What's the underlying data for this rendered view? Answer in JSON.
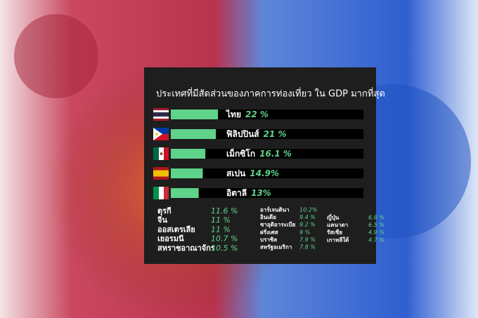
{
  "chart_data": {
    "type": "bar",
    "subtitle": "ประเทศที่มีสัดส่วนของภาคการท่องเที่ยว ใน GDP มากที่สุด",
    "categories": [
      "ไทย",
      "ฟิลิปปินส์",
      "เม็กซิโก",
      "สเปน",
      "อิตาลี"
    ],
    "values": [
      22,
      21,
      16.1,
      14.9,
      13
    ],
    "value_labels": [
      "22 %",
      "21 %",
      "16.1 %",
      "14.9%",
      "13%"
    ],
    "color": "#5fd38a"
  },
  "others": {
    "columns": [
      {
        "rows": [
          [
            "ตุรกี",
            "11.6 %"
          ],
          [
            "จีน",
            "11 %"
          ],
          [
            "ออสเตรเลีย",
            "11 %"
          ],
          [
            "เยอรมนี",
            "10.7 %"
          ],
          [
            "สหราชอาณาจักร",
            "10.5 %"
          ]
        ]
      },
      {
        "rows": [
          [
            "อาร์เจนตินา",
            "10.2%"
          ],
          [
            "อินเดีย",
            "9.4 %"
          ],
          [
            "ซาอุดิอาระเบีย",
            "9.2 %"
          ],
          [
            "ฝรั่งเศส",
            "9 %"
          ],
          [
            "บราซิล",
            "7.9 %"
          ],
          [
            "สหรัฐอเมริกา",
            "7.8 %"
          ]
        ]
      },
      {
        "rows": [
          [
            "ญี่ปุ่น",
            "6.8 %"
          ],
          [
            "แคนาดา",
            "6.5 %"
          ],
          [
            "รัสเซีย",
            "4.9 %"
          ],
          [
            "เกาหลีใต้",
            "4.7 %"
          ]
        ]
      }
    ]
  }
}
